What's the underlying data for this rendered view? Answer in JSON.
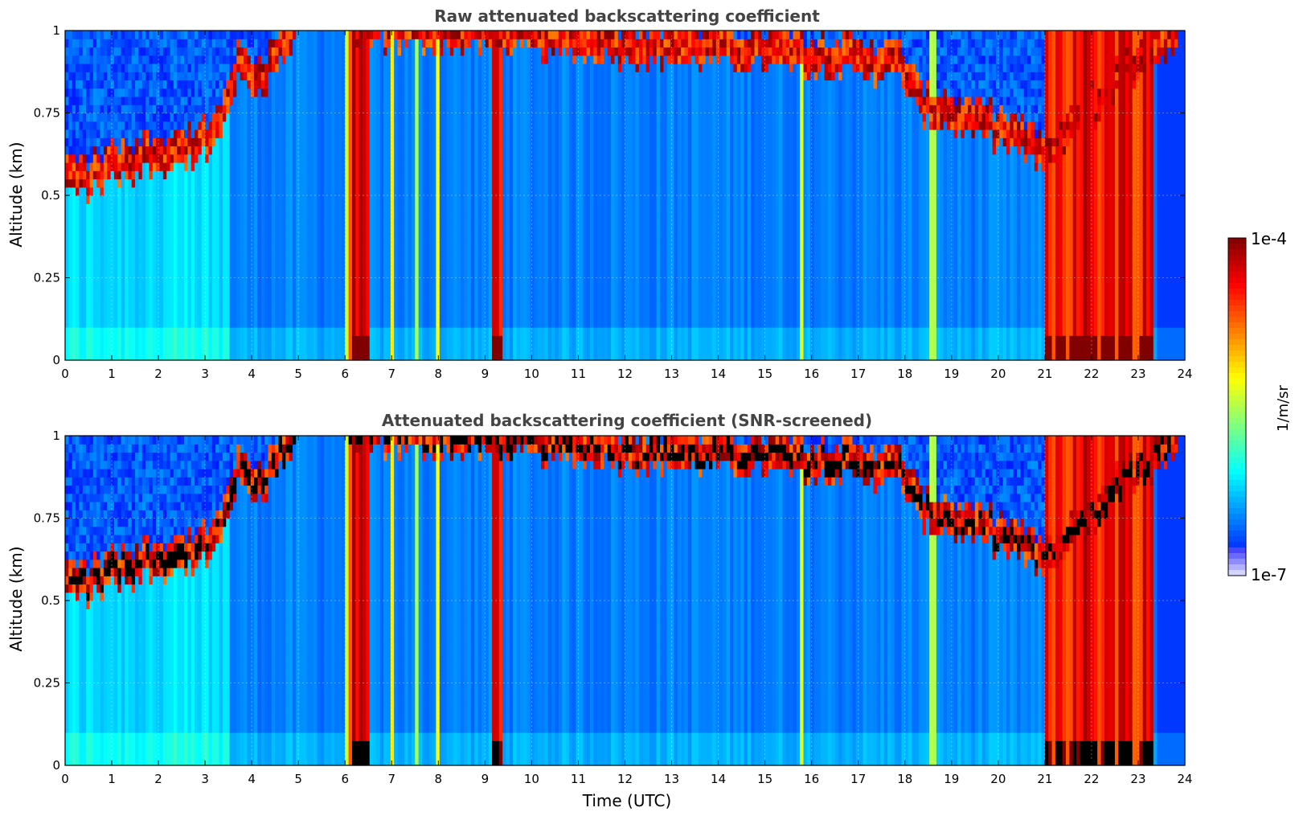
{
  "chart_data": [
    {
      "type": "heatmap",
      "title": "Raw attenuated backscattering coefficient",
      "xlabel": "",
      "ylabel": "Altitude (km)",
      "xlim": [
        0,
        24
      ],
      "ylim": [
        0,
        1
      ],
      "xticks": [
        "0",
        "1",
        "2",
        "3",
        "4",
        "5",
        "6",
        "7",
        "8",
        "9",
        "10",
        "11",
        "12",
        "13",
        "14",
        "15",
        "16",
        "17",
        "18",
        "19",
        "20",
        "21",
        "22",
        "23",
        "24"
      ],
      "yticks": [
        "0",
        "0.25",
        "0.5",
        "0.75",
        "1"
      ],
      "grid": true,
      "colormap": "jet",
      "color_scale": "log",
      "value_range": [
        1e-07,
        0.0001
      ],
      "screened_black": false
    },
    {
      "type": "heatmap",
      "title": "Attenuated backscattering coefficient (SNR-screened)",
      "xlabel": "Time (UTC)",
      "ylabel": "Altitude (km)",
      "xlim": [
        0,
        24
      ],
      "ylim": [
        0,
        1
      ],
      "xticks": [
        "0",
        "1",
        "2",
        "3",
        "4",
        "5",
        "6",
        "7",
        "8",
        "9",
        "10",
        "11",
        "12",
        "13",
        "14",
        "15",
        "16",
        "17",
        "18",
        "19",
        "20",
        "21",
        "22",
        "23",
        "24"
      ],
      "yticks": [
        "0",
        "0.25",
        "0.5",
        "0.75",
        "1"
      ],
      "grid": true,
      "colormap": "jet",
      "color_scale": "log",
      "value_range": [
        1e-07,
        0.0001
      ],
      "screened_black": true
    }
  ],
  "colorbar": {
    "label": "1/m/sr",
    "max_label": "1e-4",
    "min_label": "1e-7"
  },
  "features": {
    "cloud_top_km": [
      [
        0.0,
        0.55
      ],
      [
        0.5,
        0.53
      ],
      [
        1.0,
        0.57
      ],
      [
        2.0,
        0.6
      ],
      [
        3.0,
        0.63
      ],
      [
        3.3,
        0.68
      ],
      [
        3.7,
        0.88
      ],
      [
        4.2,
        0.83
      ],
      [
        5.0,
        1.0
      ],
      [
        17.9,
        0.88
      ],
      [
        18.3,
        0.75
      ],
      [
        19.0,
        0.72
      ],
      [
        20.0,
        0.68
      ],
      [
        20.8,
        0.62
      ],
      [
        21.0,
        0.6
      ],
      [
        24.0,
        1.0
      ]
    ],
    "intense_stripes_hours": [
      [
        6.0,
        6.5
      ],
      [
        9.15,
        9.35
      ],
      [
        21.0,
        23.3
      ]
    ],
    "weak_stripes_hours": [
      6.05,
      7.0,
      7.55,
      8.0,
      15.8,
      18.6
    ]
  }
}
